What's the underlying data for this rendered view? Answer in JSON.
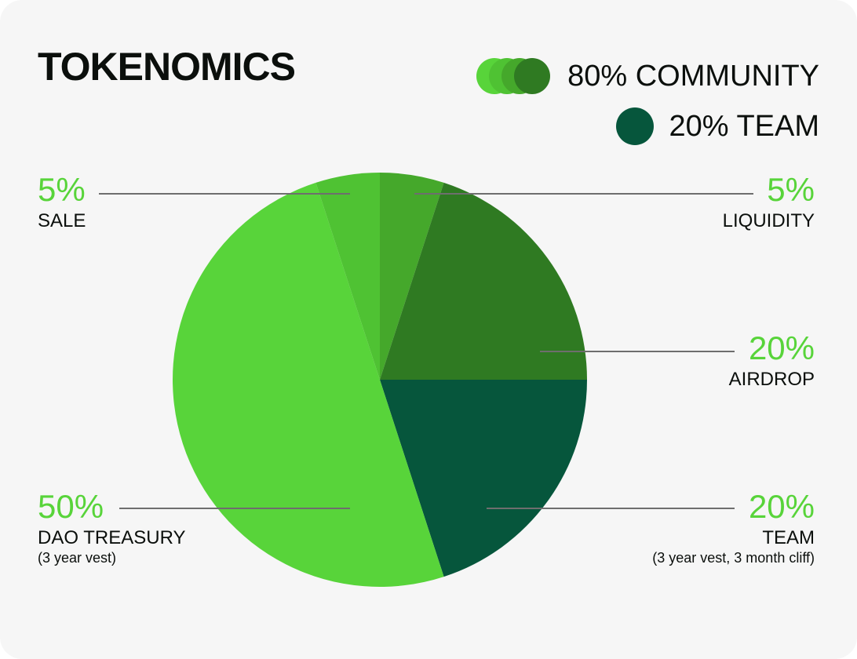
{
  "title": "TOKENOMICS",
  "legend": {
    "community": {
      "label": "80% COMMUNITY",
      "colors": [
        "#58d43a",
        "#4fc233",
        "#45a82b",
        "#2f7a22"
      ]
    },
    "team": {
      "label": "20% TEAM",
      "color": "#06563c"
    }
  },
  "chart_data": {
    "type": "pie",
    "title": "TOKENOMICS",
    "slices": [
      {
        "name": "LIQUIDITY",
        "value": 5,
        "pct_label": "5%",
        "sublabel": "",
        "color": "#45a82b"
      },
      {
        "name": "AIRDROP",
        "value": 20,
        "pct_label": "20%",
        "sublabel": "",
        "color": "#2f7a22"
      },
      {
        "name": "TEAM",
        "value": 20,
        "pct_label": "20%",
        "sublabel": "(3 year vest, 3 month cliff)",
        "color": "#06563c"
      },
      {
        "name": "DAO TREASURY",
        "value": 50,
        "pct_label": "50%",
        "sublabel": "(3 year vest)",
        "color": "#58d43a"
      },
      {
        "name": "SALE",
        "value": 5,
        "pct_label": "5%",
        "sublabel": "",
        "color": "#4fc233"
      }
    ],
    "label_color": "#58d43a",
    "leader_line_color": "#6e6e6e"
  }
}
